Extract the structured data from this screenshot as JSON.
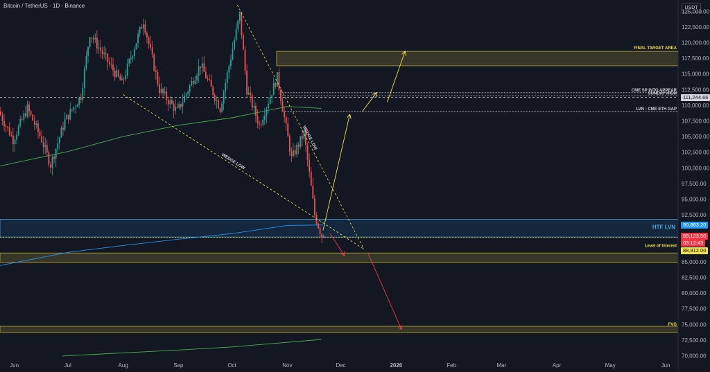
{
  "header": {
    "title": "Bitcoin / TetherUS · 1D · Binance",
    "currency_button": "USDT"
  },
  "chart_data": {
    "type": "candlestick",
    "symbol": "Bitcoin / TetherUS",
    "interval": "1D",
    "exchange": "Binance",
    "ylim": [
      69500,
      126800
    ],
    "yticks": [
      {
        "v": 125000,
        "label": "125,000.00"
      },
      {
        "v": 122500,
        "label": "122,500.00"
      },
      {
        "v": 120000,
        "label": "120,000.00"
      },
      {
        "v": 117500,
        "label": "117,500.00"
      },
      {
        "v": 115000,
        "label": "115,000.00"
      },
      {
        "v": 112500,
        "label": "112,500.00"
      },
      {
        "v": 110000,
        "label": "110,000.00"
      },
      {
        "v": 107500,
        "label": "107,500.00"
      },
      {
        "v": 105000,
        "label": "105,000.00"
      },
      {
        "v": 102500,
        "label": "102,500.00"
      },
      {
        "v": 100000,
        "label": "100,000.00"
      },
      {
        "v": 97500,
        "label": "97,500.00"
      },
      {
        "v": 95000,
        "label": "95,000.00"
      },
      {
        "v": 92500,
        "label": "92,500.00"
      },
      {
        "v": 85000,
        "label": "85,000.00"
      },
      {
        "v": 82500,
        "label": "82,500.00"
      },
      {
        "v": 80000,
        "label": "80,000.00"
      },
      {
        "v": 77500,
        "label": "77,500.00"
      },
      {
        "v": 75000,
        "label": "75,000.00"
      },
      {
        "v": 72500,
        "label": "72,500.00"
      },
      {
        "v": 70000,
        "label": "70,000.00"
      }
    ],
    "x_start": "2025-05-24",
    "x_end": "2026-06-08",
    "xticks": [
      {
        "d": "2025-06-01",
        "label": "Jun"
      },
      {
        "d": "2025-07-01",
        "label": "Jul"
      },
      {
        "d": "2025-08-01",
        "label": "Aug"
      },
      {
        "d": "2025-09-01",
        "label": "Sep"
      },
      {
        "d": "2025-10-01",
        "label": "Oct"
      },
      {
        "d": "2025-11-01",
        "label": "Nov"
      },
      {
        "d": "2025-12-01",
        "label": "Dec"
      },
      {
        "d": "2026-01-01",
        "label": "2026"
      },
      {
        "d": "2026-02-01",
        "label": "Feb"
      },
      {
        "d": "2026-03-01",
        "label": "Mar"
      },
      {
        "d": "2026-04-01",
        "label": "Apr"
      },
      {
        "d": "2026-05-01",
        "label": "May"
      },
      {
        "d": "2026-06-01",
        "label": "Jun"
      }
    ],
    "price_path": [
      {
        "d": "2025-05-24",
        "p": 109000
      },
      {
        "d": "2025-06-01",
        "p": 104500
      },
      {
        "d": "2025-06-09",
        "p": 109500
      },
      {
        "d": "2025-06-17",
        "p": 104500
      },
      {
        "d": "2025-06-22",
        "p": 100500
      },
      {
        "d": "2025-06-30",
        "p": 107500
      },
      {
        "d": "2025-07-09",
        "p": 111500
      },
      {
        "d": "2025-07-14",
        "p": 121500
      },
      {
        "d": "2025-07-25",
        "p": 116500
      },
      {
        "d": "2025-08-01",
        "p": 113500
      },
      {
        "d": "2025-08-13",
        "p": 123500
      },
      {
        "d": "2025-08-22",
        "p": 112500
      },
      {
        "d": "2025-09-01",
        "p": 109000
      },
      {
        "d": "2025-09-14",
        "p": 116500
      },
      {
        "d": "2025-09-25",
        "p": 109500
      },
      {
        "d": "2025-10-06",
        "p": 124500
      },
      {
        "d": "2025-10-10",
        "p": 112500
      },
      {
        "d": "2025-10-17",
        "p": 106800
      },
      {
        "d": "2025-10-27",
        "p": 114500
      },
      {
        "d": "2025-11-04",
        "p": 101500
      },
      {
        "d": "2025-11-11",
        "p": 105500
      },
      {
        "d": "2025-11-17",
        "p": 92500
      },
      {
        "d": "2025-11-21",
        "p": 89123.5
      }
    ],
    "ma_series": [
      {
        "name": "",
        "color": "#4caf50",
        "points": [
          {
            "d": "2025-05-24",
            "p": 100300
          },
          {
            "d": "2025-07-01",
            "p": 102600
          },
          {
            "d": "2025-08-01",
            "p": 105000
          },
          {
            "d": "2025-09-01",
            "p": 106800
          },
          {
            "d": "2025-10-01",
            "p": 108000
          },
          {
            "d": "2025-11-01",
            "p": 109800
          },
          {
            "d": "2025-11-20",
            "p": 109500
          }
        ]
      },
      {
        "name": "",
        "color": "#2196f3",
        "points": [
          {
            "d": "2025-05-24",
            "p": 84400
          },
          {
            "d": "2025-07-01",
            "p": 86500
          },
          {
            "d": "2025-08-01",
            "p": 87600
          },
          {
            "d": "2025-09-01",
            "p": 88600
          },
          {
            "d": "2025-10-01",
            "p": 89500
          },
          {
            "d": "2025-11-01",
            "p": 90800
          },
          {
            "d": "2025-11-21",
            "p": 90883
          }
        ]
      },
      {
        "name": "",
        "color": "#4caf50",
        "points": [
          {
            "d": "2025-06-28",
            "p": 69950
          },
          {
            "d": "2025-09-01",
            "p": 70900
          },
          {
            "d": "2025-10-01",
            "p": 71400
          },
          {
            "d": "2025-11-20",
            "p": 72600
          }
        ]
      }
    ],
    "zones": [
      {
        "label": "FINAL TARGET AREA",
        "from": 116300,
        "to": 118600,
        "start": "2025-10-26",
        "color": "yellow"
      },
      {
        "label": "HTF LVN",
        "from": 88950,
        "to": 91800,
        "start": "2025-05-24",
        "color": "blue"
      },
      {
        "label": "",
        "from": 84900,
        "to": 86400,
        "start": "2025-05-24",
        "color": "yellow"
      },
      {
        "label": "FVG",
        "from": 73700,
        "to": 74700,
        "start": "2025-05-24",
        "color": "yellow"
      }
    ],
    "levels": [
      {
        "label": "CME SP INTO APPEAR",
        "value": 112000
      },
      {
        "label": "SUNDAY HIGH",
        "value": 111500
      },
      {
        "label": "LVN - CME ETH GAP",
        "value": 109000
      },
      {
        "label": "Level of Interest",
        "value": 88912
      }
    ],
    "trendlines": [
      {
        "label": "WEDGE LOW",
        "color": "yellow",
        "from": {
          "d": "2025-08-01",
          "p": 111700
        },
        "to": {
          "d": "2025-12-14",
          "p": 87000
        }
      },
      {
        "label": "WEDGE LOW",
        "color": "yellow",
        "from": {
          "d": "2025-10-04",
          "p": 126000
        },
        "to": {
          "d": "2025-12-14",
          "p": 87000
        }
      }
    ],
    "arrows": [
      {
        "color": "yellow",
        "from": {
          "d": "2025-11-21",
          "p": 90000
        },
        "to": {
          "d": "2025-12-06",
          "p": 108500
        }
      },
      {
        "color": "yellow",
        "from": {
          "d": "2025-12-13",
          "p": 109000
        },
        "to": {
          "d": "2025-12-21",
          "p": 112000
        }
      },
      {
        "color": "yellow",
        "from": {
          "d": "2025-12-27",
          "p": 110500
        },
        "to": {
          "d": "2026-01-06",
          "p": 118600
        }
      },
      {
        "color": "red",
        "from": {
          "d": "2025-11-25",
          "p": 89500
        },
        "to": {
          "d": "2025-12-03",
          "p": 86000
        }
      },
      {
        "color": "red",
        "from": {
          "d": "2025-12-16",
          "p": 86500
        },
        "to": {
          "d": "2026-01-04",
          "p": 74200
        }
      }
    ],
    "price_tags": [
      {
        "value": 111244.66,
        "text": "111,244.66",
        "bg": "#d1d4dc",
        "fg": "#131722"
      },
      {
        "value": 90883.2,
        "text": "90,883.20",
        "bg": "#2196f3",
        "fg": "#ffffff"
      },
      {
        "value": 89123.5,
        "text": "89,123.50",
        "bg": "#f23645",
        "fg": "#ffffff"
      },
      {
        "value": 88912.0,
        "text": "88,912.00",
        "bg": "#f2e14c",
        "fg": "#131722"
      }
    ],
    "countdown": "03:12:43"
  }
}
